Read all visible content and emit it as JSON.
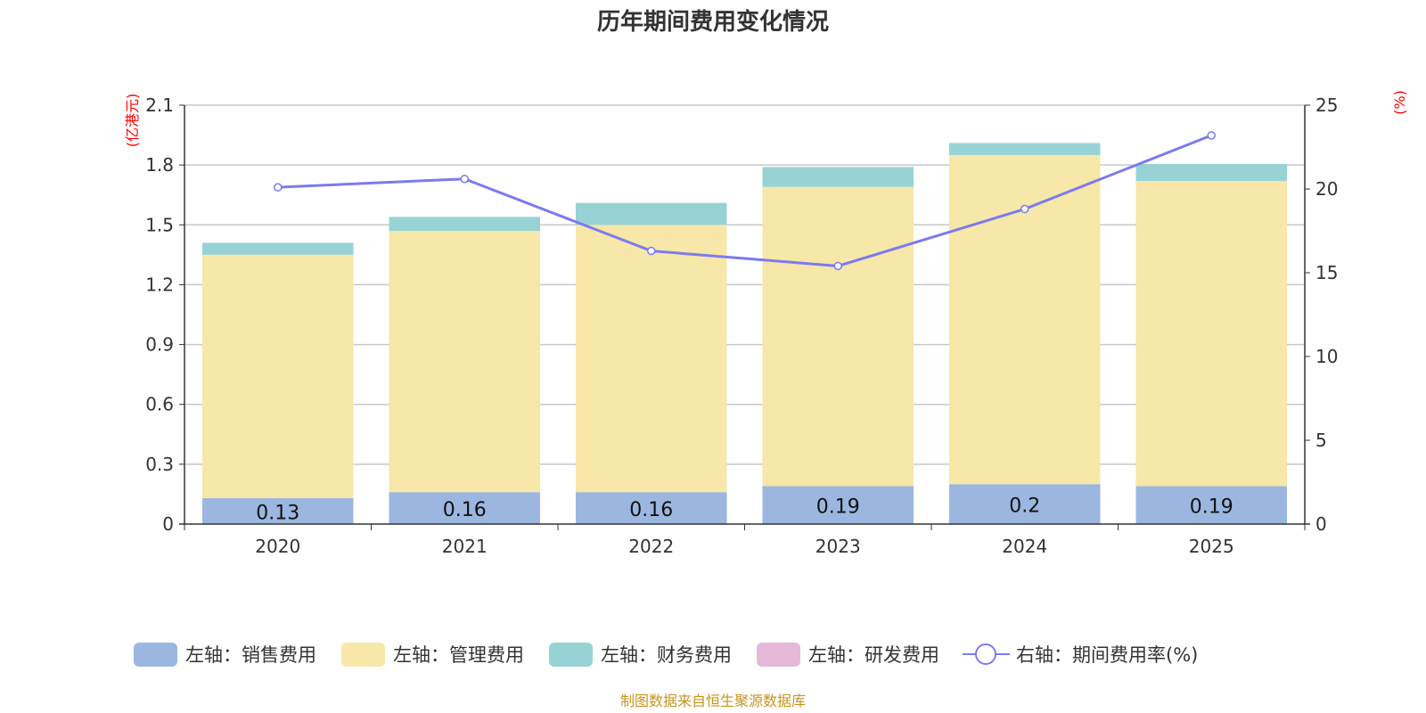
{
  "chart_data": {
    "type": "bar",
    "title": "历年期间费用变化情况",
    "categories": [
      "2020",
      "2021",
      "2022",
      "2023",
      "2024",
      "2025"
    ],
    "left_axis": {
      "unit": "(亿港元)",
      "ylim": [
        0,
        2.1
      ],
      "ticks": [
        "0",
        "0.3",
        "0.6",
        "0.9",
        "1.2",
        "1.5",
        "1.8",
        "2.1"
      ]
    },
    "right_axis": {
      "unit": "(%)",
      "ylim": [
        0,
        25
      ],
      "ticks": [
        "0",
        "5",
        "10",
        "15",
        "20",
        "25"
      ]
    },
    "grid": true,
    "legend_position": "bottom",
    "series": [
      {
        "name": "左轴：销售费用",
        "type": "bar",
        "stack": true,
        "color": "#9bb7e0",
        "values": [
          0.13,
          0.16,
          0.16,
          0.19,
          0.2,
          0.19
        ],
        "labels": [
          "0.13",
          "0.16",
          "0.16",
          "0.19",
          "0.2",
          "0.19"
        ]
      },
      {
        "name": "左轴：管理费用",
        "type": "bar",
        "stack": true,
        "color": "#f7e7a8",
        "values": [
          1.22,
          1.31,
          1.34,
          1.5,
          1.65,
          1.53
        ]
      },
      {
        "name": "左轴：财务费用",
        "type": "bar",
        "stack": true,
        "color": "#97d3d4",
        "values": [
          0.06,
          0.07,
          0.11,
          0.1,
          0.06,
          0.085
        ]
      },
      {
        "name": "左轴：研发费用",
        "type": "bar",
        "stack": true,
        "color": "#e6b8d8",
        "values": [
          0,
          0,
          0,
          0,
          0,
          0
        ]
      },
      {
        "name": "右轴：期间费用率(%)",
        "type": "line",
        "axis": "right",
        "color": "#7b7bef",
        "values": [
          20.1,
          20.6,
          16.3,
          15.4,
          18.8,
          23.2
        ]
      }
    ],
    "source": "制图数据来自恒生聚源数据库"
  }
}
